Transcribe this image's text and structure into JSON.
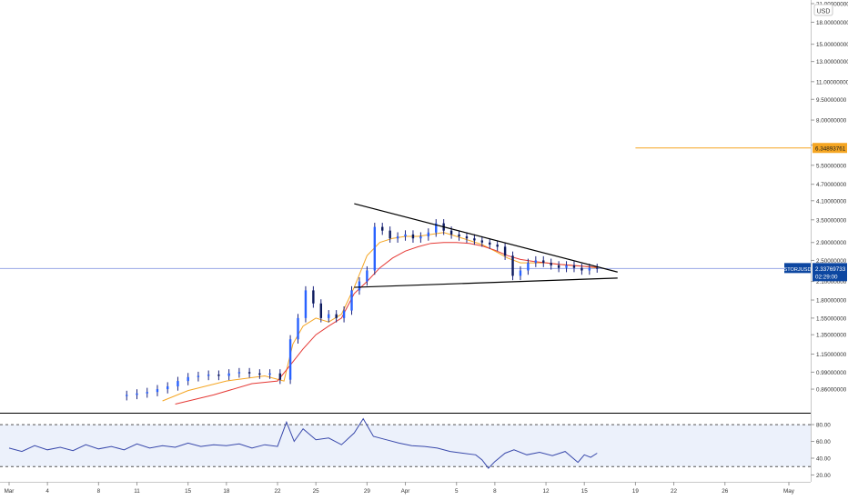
{
  "chart_data": [
    {
      "type": "candlestick",
      "quote_currency": "USD",
      "y_scale": "log",
      "ylim": [
        0.74,
        21.0
      ],
      "y_ticks": [
        "21.00000000",
        "18.00000000",
        "15.00000000",
        "13.00000000",
        "11.00000000",
        "9.50000000",
        "8.00000000",
        "6.50000000",
        "5.50000000",
        "4.70000000",
        "4.10000000",
        "3.50000000",
        "2.90000000",
        "2.50000000",
        "2.10000000",
        "1.80000000",
        "1.55000000",
        "1.35000000",
        "1.15000000",
        "0.99000000",
        "0.86000000"
      ],
      "x_ticks": [
        "Mar",
        "4",
        "8",
        "11",
        "15",
        "18",
        "22",
        "25",
        "29",
        "Apr",
        "5",
        "8",
        "12",
        "15",
        "19",
        "22",
        "26",
        "May"
      ],
      "x_tick_days": [
        1,
        4,
        8,
        11,
        15,
        18,
        22,
        25,
        29,
        32,
        36,
        39,
        43,
        46,
        50,
        53,
        57,
        62
      ],
      "x_start_day": 1,
      "series": [
        {
          "kind": "candles",
          "day": [
            10.2,
            11,
            11.8,
            12.6,
            13.4,
            14.2,
            15,
            15.8,
            16.6,
            17.4,
            18.2,
            19,
            19.8,
            20.6,
            21.4,
            22.2,
            23,
            23.6,
            24.2,
            24.8,
            25.4,
            26,
            26.6,
            27.2,
            27.8,
            28.4,
            29,
            29.6,
            30.2,
            30.8,
            31.4,
            32,
            32.6,
            33.2,
            33.8,
            34.4,
            35,
            35.6,
            36.2,
            36.8,
            37.4,
            38,
            38.6,
            39.2,
            39.8,
            40.4,
            41,
            41.6,
            42.2,
            42.8,
            43.4,
            44,
            44.6,
            45.2,
            45.8,
            46.4,
            47
          ],
          "close": [
            0.82,
            0.83,
            0.84,
            0.86,
            0.88,
            0.92,
            0.95,
            0.96,
            0.97,
            0.96,
            0.98,
            0.99,
            0.98,
            0.97,
            0.98,
            0.93,
            1.3,
            1.55,
            1.95,
            1.75,
            1.55,
            1.6,
            1.55,
            1.65,
            1.95,
            2.1,
            2.3,
            3.3,
            3.2,
            3.0,
            3.05,
            3.1,
            3.0,
            3.05,
            3.15,
            3.4,
            3.2,
            3.1,
            3.05,
            3.0,
            2.95,
            2.9,
            2.85,
            2.8,
            2.6,
            2.2,
            2.3,
            2.45,
            2.5,
            2.45,
            2.4,
            2.35,
            2.4,
            2.35,
            2.3,
            2.35,
            2.34
          ]
        },
        {
          "kind": "moving_average",
          "color": "#f5a623",
          "day": [
            13,
            15,
            18,
            21,
            22.5,
            23.2,
            24,
            25,
            26,
            27,
            28,
            29,
            30,
            31,
            32,
            33,
            34,
            35,
            36,
            37,
            38,
            39,
            40,
            41,
            42,
            43,
            44,
            45,
            46,
            47
          ],
          "value": [
            0.78,
            0.85,
            0.92,
            0.96,
            0.92,
            1.25,
            1.45,
            1.55,
            1.5,
            1.6,
            2.0,
            2.6,
            2.9,
            3.0,
            3.05,
            3.05,
            3.1,
            3.15,
            3.05,
            2.95,
            2.85,
            2.7,
            2.55,
            2.45,
            2.45,
            2.45,
            2.42,
            2.4,
            2.38,
            2.35
          ]
        },
        {
          "kind": "moving_average",
          "color": "#e53935",
          "day": [
            14,
            17,
            20,
            22,
            23,
            24,
            25,
            26,
            27,
            28,
            29,
            30,
            31,
            32,
            33,
            34,
            35,
            36,
            37,
            38,
            39,
            40,
            41,
            42,
            43,
            44,
            45,
            46,
            47
          ],
          "value": [
            0.76,
            0.82,
            0.9,
            0.92,
            1.05,
            1.2,
            1.35,
            1.45,
            1.55,
            1.9,
            2.1,
            2.35,
            2.55,
            2.7,
            2.8,
            2.88,
            2.9,
            2.9,
            2.88,
            2.82,
            2.72,
            2.6,
            2.52,
            2.48,
            2.45,
            2.42,
            2.4,
            2.38,
            2.36
          ]
        },
        {
          "kind": "trendline",
          "color": "#000000",
          "day": [
            28.0,
            48.6
          ],
          "value": [
            4.0,
            2.27
          ]
        },
        {
          "kind": "trendline",
          "color": "#000000",
          "day": [
            28.0,
            48.6
          ],
          "value": [
            2.0,
            2.16
          ]
        }
      ],
      "horizontal_lines": [
        {
          "value": 6.34893761,
          "label": "6.34893761",
          "color": "#f5a623",
          "from_day": 50
        },
        {
          "value": 2.33769733,
          "color": "#9aa7e6"
        }
      ],
      "last_price": {
        "symbol": "STORJUSD",
        "value": "2.33769733",
        "countdown": "02:29:00",
        "color": "#0d47a1"
      }
    },
    {
      "type": "line",
      "indicator": "oscillator",
      "ylim": [
        14,
        92
      ],
      "y_ticks": [
        "80.00",
        "60.00",
        "40.00",
        "20.00"
      ],
      "bands": [
        80,
        30
      ],
      "color": "#3949ab",
      "day": [
        1,
        2,
        3,
        4,
        5,
        6,
        7,
        8,
        9,
        10,
        11,
        12,
        13,
        14,
        15,
        16,
        17,
        18,
        19,
        20,
        21,
        22,
        22.7,
        23.3,
        24,
        25,
        26,
        27,
        28,
        28.7,
        29.5,
        30.5,
        31.5,
        32.5,
        33.5,
        34.5,
        35.5,
        36.5,
        37.5,
        38,
        38.5,
        39,
        39.8,
        40.5,
        41.5,
        42.5,
        43.5,
        44.5,
        45.5,
        46,
        46.5,
        47
      ],
      "value": [
        52,
        48,
        55,
        50,
        53,
        49,
        56,
        51,
        54,
        50,
        57,
        52,
        55,
        53,
        58,
        54,
        56,
        55,
        57,
        52,
        56,
        54,
        83,
        60,
        75,
        62,
        64,
        56,
        70,
        87,
        66,
        62,
        58,
        55,
        54,
        52,
        48,
        46,
        44,
        38,
        28,
        36,
        46,
        50,
        44,
        47,
        43,
        48,
        35,
        44,
        41,
        46
      ]
    }
  ]
}
